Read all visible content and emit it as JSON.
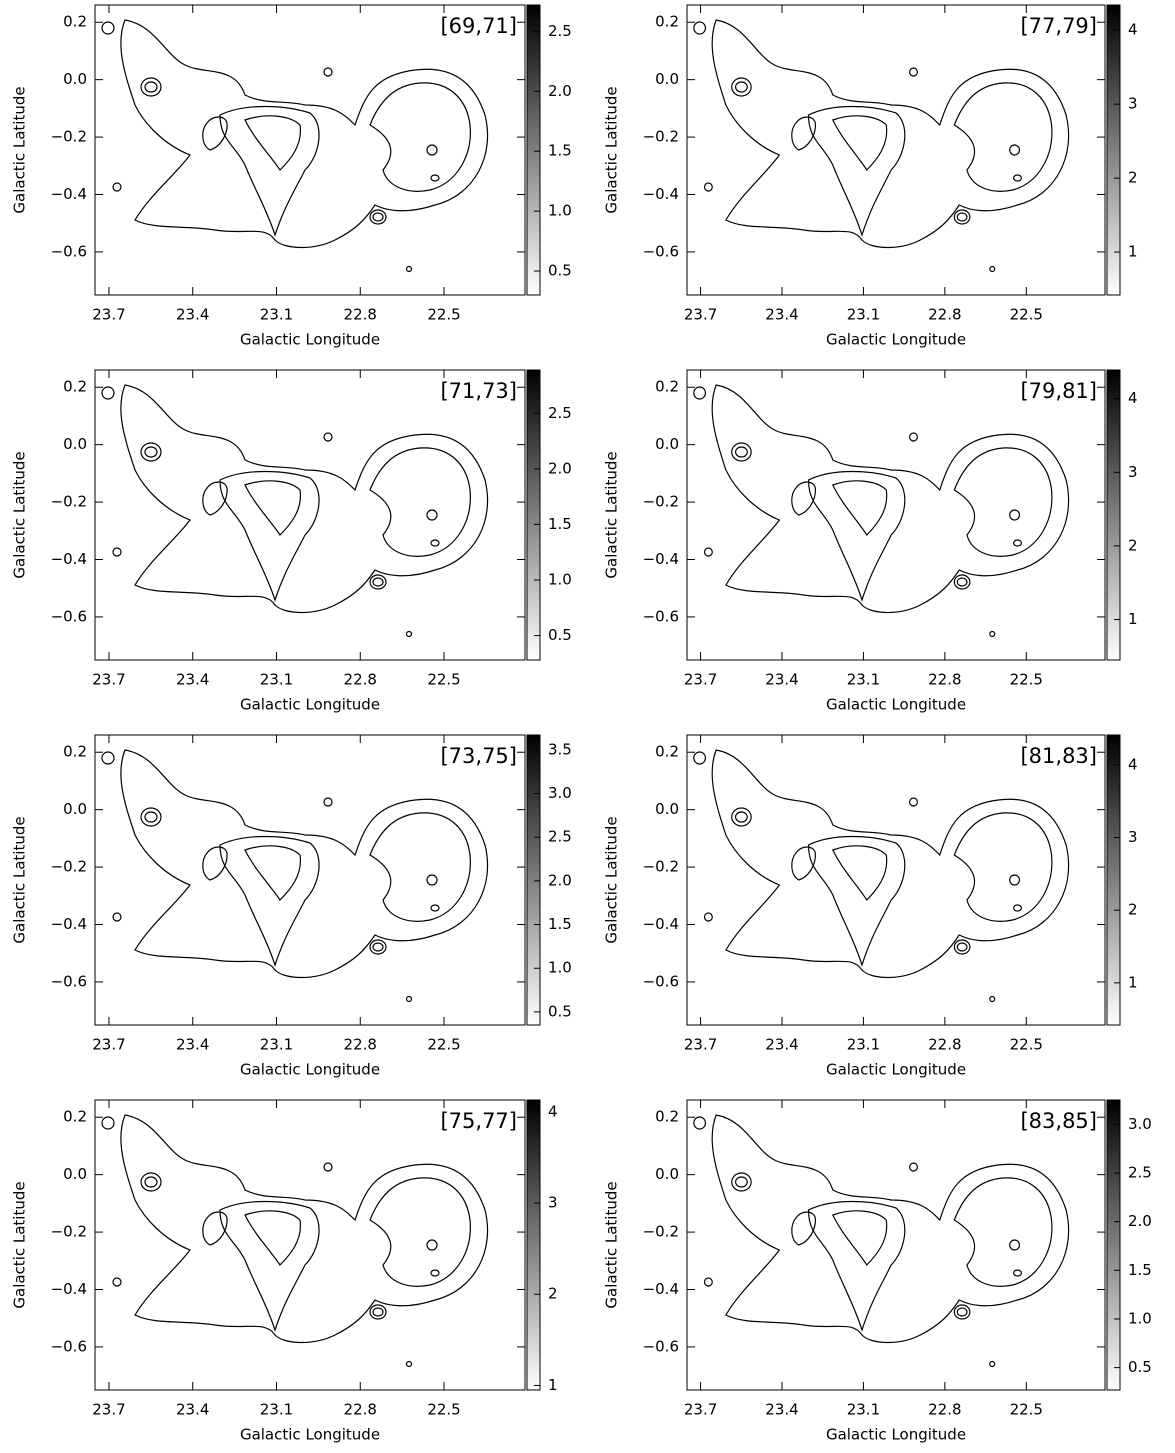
{
  "chart_data": [
    {
      "type": "image",
      "title": "[69,71]",
      "xlabel": "Galactic Longitude",
      "ylabel": "Galactic Latitude",
      "xlim": [
        23.75,
        22.21
      ],
      "xticks": [
        23.7,
        23.4,
        23.1,
        22.8,
        22.5
      ],
      "ylim": [
        -0.75,
        0.26
      ],
      "yticks": [
        0.2,
        {
          "value": 0,
          "label": "0.0"
        },
        {
          "value": -0.2,
          "label": "−0.2"
        },
        {
          "value": -0.4,
          "label": "−0.4"
        },
        {
          "value": -0.6,
          "label": "−0.6"
        }
      ],
      "clim": [
        0.3,
        2.72
      ],
      "cticks": [
        0.5,
        {
          "value": 1,
          "label": "1.0"
        },
        1.5,
        {
          "value": 2,
          "label": "2.0"
        },
        2.5
      ]
    },
    {
      "type": "image",
      "title": "[71,73]",
      "xlabel": "Galactic Longitude",
      "ylabel": "Galactic Latitude",
      "xlim": [
        23.75,
        22.21
      ],
      "xticks": [
        23.7,
        23.4,
        23.1,
        22.8,
        22.5
      ],
      "ylim": [
        -0.75,
        0.26
      ],
      "yticks": [
        0.2,
        {
          "value": 0,
          "label": "0.0"
        },
        {
          "value": -0.2,
          "label": "−0.2"
        },
        {
          "value": -0.4,
          "label": "−0.4"
        },
        {
          "value": -0.6,
          "label": "−0.6"
        }
      ],
      "clim": [
        0.28,
        2.89
      ],
      "cticks": [
        0.5,
        {
          "value": 1,
          "label": "1.0"
        },
        1.5,
        {
          "value": 2,
          "label": "2.0"
        },
        2.5
      ]
    },
    {
      "type": "image",
      "title": "[73,75]",
      "xlabel": "Galactic Longitude",
      "ylabel": "Galactic Latitude",
      "xlim": [
        23.75,
        22.21
      ],
      "xticks": [
        23.7,
        23.4,
        23.1,
        22.8,
        22.5
      ],
      "ylim": [
        -0.75,
        0.26
      ],
      "yticks": [
        0.2,
        {
          "value": 0,
          "label": "0.0"
        },
        {
          "value": -0.2,
          "label": "−0.2"
        },
        {
          "value": -0.4,
          "label": "−0.4"
        },
        {
          "value": -0.6,
          "label": "−0.6"
        }
      ],
      "clim": [
        0.35,
        3.67
      ],
      "cticks": [
        0.5,
        {
          "value": 1,
          "label": "1.0"
        },
        1.5,
        {
          "value": 2,
          "label": "2.0"
        },
        2.5,
        {
          "value": 3,
          "label": "3.0"
        },
        3.5
      ]
    },
    {
      "type": "image",
      "title": "[75,77]",
      "xlabel": "Galactic Longitude",
      "ylabel": "Galactic Latitude",
      "xlim": [
        23.75,
        22.21
      ],
      "xticks": [
        23.7,
        23.4,
        23.1,
        22.8,
        22.5
      ],
      "ylim": [
        -0.75,
        0.26
      ],
      "yticks": [
        0.2,
        {
          "value": 0,
          "label": "0.0"
        },
        {
          "value": -0.2,
          "label": "−0.2"
        },
        {
          "value": -0.4,
          "label": "−0.4"
        },
        {
          "value": -0.6,
          "label": "−0.6"
        }
      ],
      "clim": [
        0.95,
        4.13
      ],
      "cticks": [
        1,
        2,
        3,
        4
      ]
    },
    {
      "type": "image",
      "title": "[77,79]",
      "xlabel": "Galactic Longitude",
      "ylabel": "Galactic Latitude",
      "xlim": [
        23.75,
        22.21
      ],
      "xticks": [
        23.7,
        23.4,
        23.1,
        22.8,
        22.5
      ],
      "ylim": [
        -0.75,
        0.26
      ],
      "yticks": [
        0.2,
        {
          "value": 0,
          "label": "0.0"
        },
        {
          "value": -0.2,
          "label": "−0.2"
        },
        {
          "value": -0.4,
          "label": "−0.4"
        },
        {
          "value": -0.6,
          "label": "−0.6"
        }
      ],
      "clim": [
        0.42,
        4.34
      ],
      "cticks": [
        1,
        2,
        3,
        4
      ]
    },
    {
      "type": "image",
      "title": "[79,81]",
      "xlabel": "Galactic Longitude",
      "ylabel": "Galactic Latitude",
      "xlim": [
        23.75,
        22.21
      ],
      "xticks": [
        23.7,
        23.4,
        23.1,
        22.8,
        22.5
      ],
      "ylim": [
        -0.75,
        0.26
      ],
      "yticks": [
        0.2,
        {
          "value": 0,
          "label": "0.0"
        },
        {
          "value": -0.2,
          "label": "−0.2"
        },
        {
          "value": -0.4,
          "label": "−0.4"
        },
        {
          "value": -0.6,
          "label": "−0.6"
        }
      ],
      "clim": [
        0.45,
        4.39
      ],
      "cticks": [
        1,
        2,
        3,
        4
      ]
    },
    {
      "type": "image",
      "title": "[81,83]",
      "xlabel": "Galactic Longitude",
      "ylabel": "Galactic Latitude",
      "xlim": [
        23.75,
        22.21
      ],
      "xticks": [
        23.7,
        23.4,
        23.1,
        22.8,
        22.5
      ],
      "ylim": [
        -0.75,
        0.26
      ],
      "yticks": [
        0.2,
        {
          "value": 0,
          "label": "0.0"
        },
        {
          "value": -0.2,
          "label": "−0.2"
        },
        {
          "value": -0.4,
          "label": "−0.4"
        },
        {
          "value": -0.6,
          "label": "−0.6"
        }
      ],
      "clim": [
        0.42,
        4.41
      ],
      "cticks": [
        1,
        2,
        3,
        4
      ]
    },
    {
      "type": "image",
      "title": "[83,85]",
      "xlabel": "Galactic Longitude",
      "ylabel": "Galactic Latitude",
      "xlim": [
        23.75,
        22.21
      ],
      "xticks": [
        23.7,
        23.4,
        23.1,
        22.8,
        22.5
      ],
      "ylim": [
        -0.75,
        0.26
      ],
      "yticks": [
        0.2,
        {
          "value": 0,
          "label": "0.0"
        },
        {
          "value": -0.2,
          "label": "−0.2"
        },
        {
          "value": -0.4,
          "label": "−0.4"
        },
        {
          "value": -0.6,
          "label": "−0.6"
        }
      ],
      "clim": [
        0.27,
        3.25
      ],
      "cticks": [
        0.5,
        {
          "value": 1,
          "label": "1.0"
        },
        1.5,
        {
          "value": 2,
          "label": "2.0"
        },
        2.5,
        {
          "value": 3,
          "label": "3.0"
        }
      ]
    }
  ]
}
